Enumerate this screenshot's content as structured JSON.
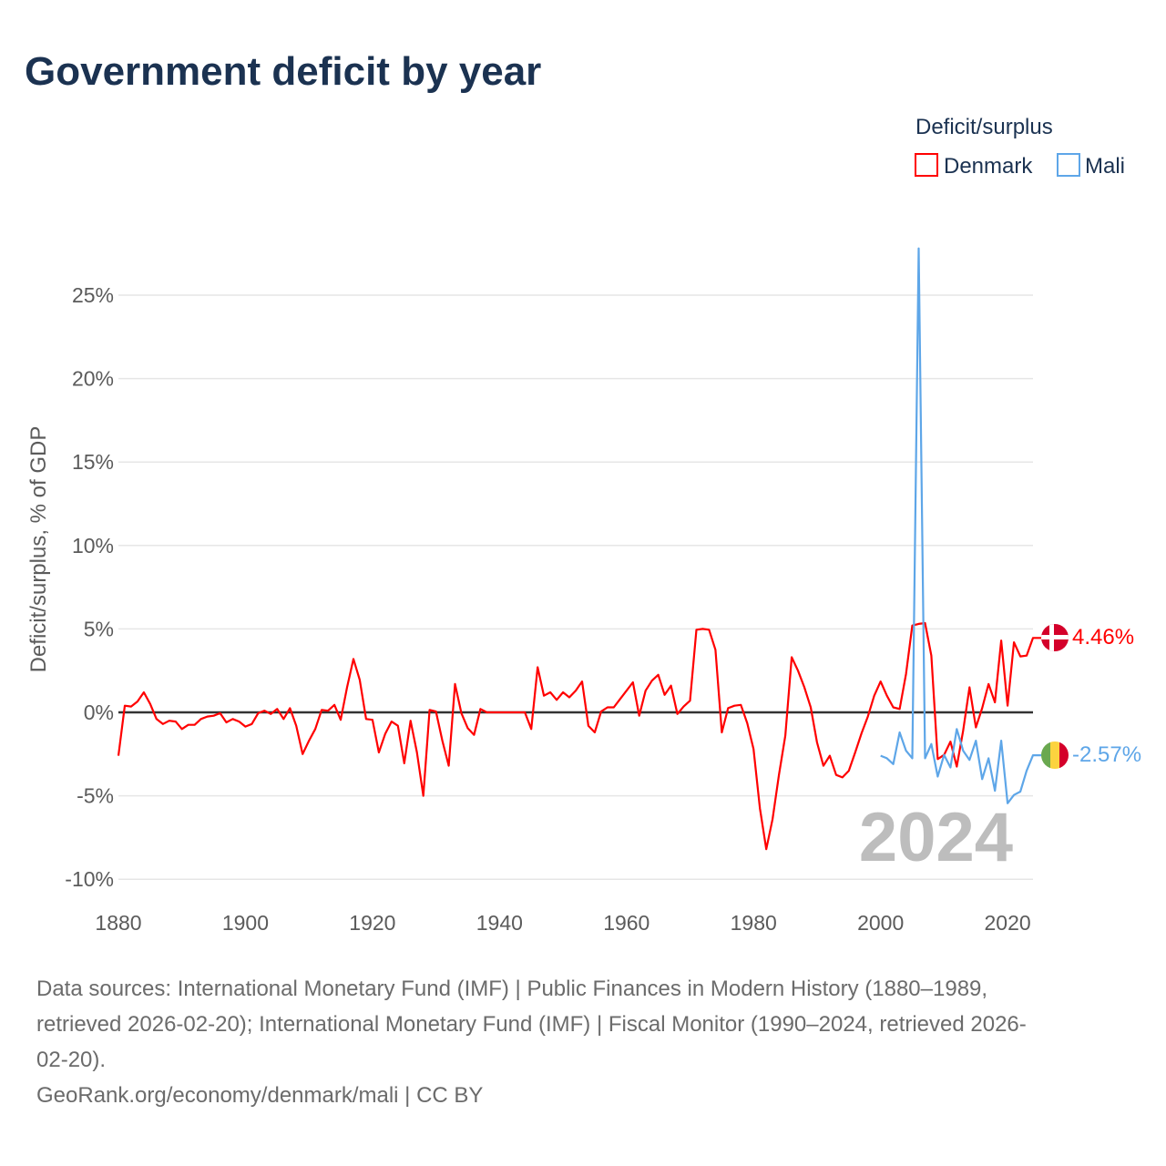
{
  "title": "Government deficit by year",
  "legend": {
    "title": "Deficit/surplus",
    "items": [
      "Denmark",
      "Mali"
    ]
  },
  "colors": {
    "Denmark": "#ff0000",
    "Mali": "#5ea6e8",
    "zero": "#333333",
    "grid": "#e6e6e6"
  },
  "footer": {
    "lines": [
      "Data sources: International Monetary Fund (IMF) | Public Finances in Modern History (1880–1989,",
      "retrieved 2026-02-20); International Monetary Fund (IMF) | Fiscal Monitor (1990–2024, retrieved 2026-",
      "02-20).",
      "GeoRank.org/economy/denmark/mali | CC BY"
    ]
  },
  "chart_data": {
    "type": "line",
    "title": "Government deficit by year",
    "ylabel": "Deficit/surplus, % of GDP",
    "xlabel": "",
    "xlim": [
      1880,
      2024
    ],
    "ylim": [
      -10.5,
      28
    ],
    "x_ticks": [
      1880,
      1900,
      1920,
      1940,
      1960,
      1980,
      2000,
      2020
    ],
    "y_ticks": [
      -10,
      -5,
      0,
      5,
      10,
      15,
      20,
      25
    ],
    "y_tick_labels": [
      "-10%",
      "-5%",
      "0%",
      "5%",
      "10%",
      "15%",
      "20%",
      "25%"
    ],
    "current_year": "2024",
    "legend_position": "top-right",
    "series": [
      {
        "name": "Denmark",
        "start_year": 1880,
        "end_label": "4.46%",
        "values": [
          -2.6,
          0.4,
          0.35,
          0.65,
          1.2,
          0.5,
          -0.4,
          -0.7,
          -0.5,
          -0.55,
          -1.0,
          -0.75,
          -0.75,
          -0.4,
          -0.25,
          -0.2,
          -0.05,
          -0.6,
          -0.4,
          -0.55,
          -0.85,
          -0.7,
          -0.05,
          0.1,
          -0.1,
          0.2,
          -0.4,
          0.25,
          -0.8,
          -2.5,
          -1.7,
          -1.0,
          0.15,
          0.1,
          0.45,
          -0.45,
          1.5,
          3.2,
          1.95,
          -0.4,
          -0.45,
          -2.4,
          -1.3,
          -0.55,
          -0.8,
          -3.05,
          -0.5,
          -2.4,
          -5.0,
          0.15,
          0.05,
          -1.7,
          -3.2,
          1.7,
          -0.05,
          -0.95,
          -1.35,
          0.2,
          0.0,
          0.0,
          0,
          0,
          0,
          0,
          0,
          -1.0,
          2.7,
          1.0,
          1.2,
          0.75,
          1.2,
          0.9,
          1.3,
          1.85,
          -0.8,
          -1.2,
          0.05,
          0.3,
          0.3,
          0.8,
          1.3,
          1.8,
          -0.2,
          1.3,
          1.9,
          2.25,
          1.05,
          1.6,
          -0.1,
          0.35,
          0.7,
          4.95,
          5.0,
          4.95,
          3.75,
          -1.2,
          0.25,
          0.4,
          0.45,
          -0.65,
          -2.2,
          -5.75,
          -8.2,
          -6.4,
          -3.75,
          -1.4,
          3.3,
          2.5,
          1.5,
          0.3,
          -1.8,
          -3.2,
          -2.6,
          -3.75,
          -3.9,
          -3.5,
          -2.4,
          -1.25,
          -0.25,
          1.0,
          1.85,
          1.0,
          0.3,
          0.2,
          2.3,
          5.2,
          5.3,
          5.35,
          3.4,
          -2.8,
          -2.55,
          -1.75,
          -3.25,
          -1.1,
          1.5,
          -0.9,
          0.25,
          1.7,
          0.6,
          4.3,
          0.4,
          4.2,
          3.35,
          3.4,
          4.46
        ]
      },
      {
        "name": "Mali",
        "start_year": 2000,
        "end_label": "-2.57%",
        "values": [
          -2.6,
          -2.75,
          -3.1,
          -1.2,
          -2.3,
          -2.75,
          27.8,
          -2.75,
          -1.9,
          -3.85,
          -2.55,
          -3.3,
          -1.0,
          -2.3,
          -2.85,
          -1.7,
          -4.0,
          -2.75,
          -4.7,
          -1.7,
          -5.45,
          -4.95,
          -4.75,
          -3.5,
          -2.57
        ]
      }
    ]
  }
}
